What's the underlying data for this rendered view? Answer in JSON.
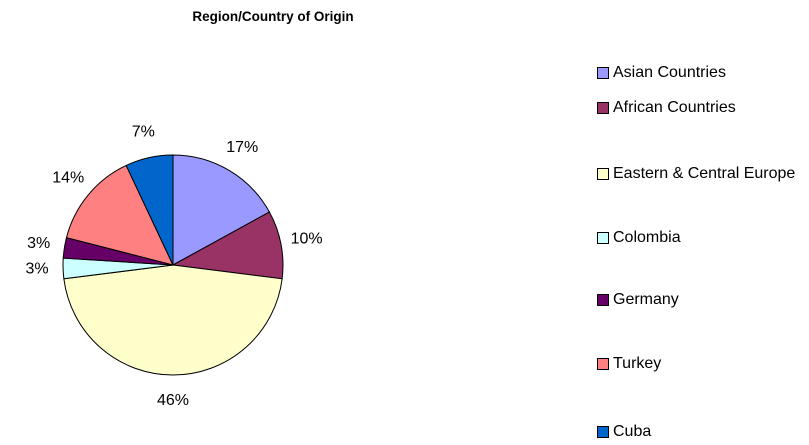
{
  "chart_data": {
    "type": "pie",
    "title": "Region/Country of Origin",
    "categories": [
      "Asian Countries",
      "African Countries",
      "Eastern & Central Europe",
      "Colombia",
      "Germany",
      "Turkey",
      "Cuba"
    ],
    "values": [
      17,
      10,
      46,
      3,
      3,
      14,
      7
    ],
    "value_labels": [
      "17%",
      "10%",
      "46%",
      "3%",
      "3%",
      "14%",
      "7%"
    ],
    "colors": [
      "#9999FF",
      "#993366",
      "#FFFFCC",
      "#CCFFFF",
      "#660066",
      "#FF8080",
      "#0066CC"
    ],
    "legend": "right"
  }
}
